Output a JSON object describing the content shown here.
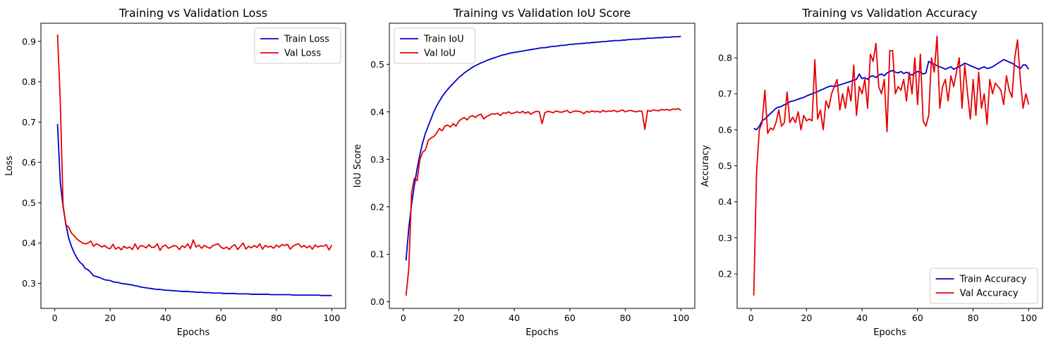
{
  "figure": {
    "background": "#ffffff"
  },
  "chart_data": [
    {
      "type": "line",
      "title": "Training vs Validation Loss",
      "xlabel": "Epochs",
      "ylabel": "Loss",
      "xlim": [
        -5,
        105
      ],
      "ylim": [
        0.238,
        0.945
      ],
      "xticks": [
        0,
        20,
        40,
        60,
        80,
        100
      ],
      "xtick_labels": [
        "0",
        "20",
        "40",
        "60",
        "80",
        "100"
      ],
      "yticks": [
        0.3,
        0.4,
        0.5,
        0.6,
        0.7,
        0.8,
        0.9
      ],
      "ytick_labels": [
        "0.3",
        "0.4",
        "0.5",
        "0.6",
        "0.7",
        "0.8",
        "0.9"
      ],
      "grid": false,
      "legend": {
        "position": "top-right"
      },
      "x": {
        "start": 1,
        "end": 100
      },
      "series": [
        {
          "name": "Train Loss",
          "color": "#0000cc",
          "values": [
            0.695,
            0.55,
            0.49,
            0.448,
            0.413,
            0.392,
            0.376,
            0.363,
            0.353,
            0.347,
            0.337,
            0.334,
            0.327,
            0.319,
            0.317,
            0.315,
            0.312,
            0.309,
            0.308,
            0.307,
            0.304,
            0.303,
            0.302,
            0.3,
            0.299,
            0.298,
            0.297,
            0.296,
            0.294,
            0.293,
            0.291,
            0.29,
            0.289,
            0.288,
            0.287,
            0.286,
            0.285,
            0.285,
            0.284,
            0.283,
            0.283,
            0.282,
            0.282,
            0.281,
            0.281,
            0.28,
            0.28,
            0.28,
            0.279,
            0.279,
            0.278,
            0.278,
            0.278,
            0.277,
            0.277,
            0.277,
            0.276,
            0.276,
            0.276,
            0.276,
            0.275,
            0.275,
            0.275,
            0.275,
            0.275,
            0.274,
            0.274,
            0.274,
            0.274,
            0.274,
            0.273,
            0.273,
            0.273,
            0.273,
            0.273,
            0.273,
            0.273,
            0.272,
            0.272,
            0.272,
            0.272,
            0.272,
            0.272,
            0.272,
            0.272,
            0.271,
            0.271,
            0.271,
            0.271,
            0.271,
            0.271,
            0.271,
            0.271,
            0.271,
            0.271,
            0.27,
            0.27,
            0.27,
            0.27,
            0.27
          ]
        },
        {
          "name": "Val Loss",
          "color": "#e60000",
          "values": [
            0.917,
            0.75,
            0.495,
            0.445,
            0.44,
            0.425,
            0.418,
            0.41,
            0.405,
            0.4,
            0.398,
            0.4,
            0.405,
            0.392,
            0.398,
            0.395,
            0.39,
            0.394,
            0.388,
            0.386,
            0.397,
            0.385,
            0.39,
            0.383,
            0.392,
            0.387,
            0.39,
            0.384,
            0.398,
            0.385,
            0.394,
            0.392,
            0.388,
            0.396,
            0.389,
            0.39,
            0.398,
            0.382,
            0.392,
            0.395,
            0.387,
            0.39,
            0.394,
            0.392,
            0.384,
            0.393,
            0.389,
            0.398,
            0.386,
            0.408,
            0.39,
            0.395,
            0.387,
            0.394,
            0.39,
            0.387,
            0.393,
            0.396,
            0.398,
            0.39,
            0.386,
            0.39,
            0.384,
            0.392,
            0.396,
            0.384,
            0.392,
            0.4,
            0.385,
            0.392,
            0.388,
            0.394,
            0.389,
            0.398,
            0.385,
            0.394,
            0.39,
            0.392,
            0.387,
            0.395,
            0.39,
            0.396,
            0.394,
            0.397,
            0.385,
            0.392,
            0.396,
            0.398,
            0.39,
            0.394,
            0.388,
            0.393,
            0.385,
            0.395,
            0.39,
            0.393,
            0.392,
            0.396,
            0.383,
            0.395
          ]
        }
      ]
    },
    {
      "type": "line",
      "title": "Training vs Validation IoU Score",
      "xlabel": "Epochs",
      "ylabel": "IoU Score",
      "xlim": [
        -5,
        105
      ],
      "ylim": [
        -0.0138,
        0.5865
      ],
      "xticks": [
        0,
        20,
        40,
        60,
        80,
        100
      ],
      "xtick_labels": [
        "0",
        "20",
        "40",
        "60",
        "80",
        "100"
      ],
      "yticks": [
        0.0,
        0.1,
        0.2,
        0.3,
        0.4,
        0.5
      ],
      "ytick_labels": [
        "0.0",
        "0.1",
        "0.2",
        "0.3",
        "0.4",
        "0.5"
      ],
      "grid": false,
      "legend": {
        "position": "top-left"
      },
      "x": {
        "start": 1,
        "end": 100
      },
      "series": [
        {
          "name": "Train IoU",
          "color": "#0000cc",
          "values": [
            0.087,
            0.155,
            0.205,
            0.245,
            0.28,
            0.31,
            0.335,
            0.355,
            0.37,
            0.385,
            0.4,
            0.412,
            0.422,
            0.432,
            0.44,
            0.447,
            0.454,
            0.46,
            0.466,
            0.472,
            0.477,
            0.482,
            0.486,
            0.49,
            0.494,
            0.497,
            0.5,
            0.503,
            0.505,
            0.508,
            0.51,
            0.512,
            0.514,
            0.516,
            0.518,
            0.52,
            0.521,
            0.523,
            0.524,
            0.525,
            0.526,
            0.527,
            0.528,
            0.529,
            0.53,
            0.531,
            0.532,
            0.533,
            0.534,
            0.535,
            0.535,
            0.536,
            0.537,
            0.538,
            0.538,
            0.539,
            0.54,
            0.54,
            0.541,
            0.542,
            0.542,
            0.543,
            0.543,
            0.544,
            0.544,
            0.545,
            0.545,
            0.546,
            0.546,
            0.547,
            0.547,
            0.548,
            0.548,
            0.549,
            0.549,
            0.55,
            0.55,
            0.55,
            0.551,
            0.551,
            0.552,
            0.552,
            0.553,
            0.553,
            0.553,
            0.554,
            0.554,
            0.555,
            0.555,
            0.555,
            0.556,
            0.556,
            0.556,
            0.557,
            0.557,
            0.557,
            0.558,
            0.558,
            0.558,
            0.559
          ]
        },
        {
          "name": "Val IoU",
          "color": "#e60000",
          "values": [
            0.013,
            0.07,
            0.23,
            0.26,
            0.255,
            0.3,
            0.315,
            0.32,
            0.34,
            0.345,
            0.348,
            0.355,
            0.365,
            0.36,
            0.37,
            0.372,
            0.368,
            0.375,
            0.37,
            0.38,
            0.385,
            0.388,
            0.383,
            0.39,
            0.392,
            0.388,
            0.393,
            0.395,
            0.385,
            0.39,
            0.393,
            0.396,
            0.395,
            0.397,
            0.392,
            0.398,
            0.397,
            0.4,
            0.396,
            0.398,
            0.4,
            0.398,
            0.401,
            0.397,
            0.4,
            0.395,
            0.399,
            0.401,
            0.4,
            0.375,
            0.398,
            0.401,
            0.4,
            0.398,
            0.402,
            0.4,
            0.399,
            0.401,
            0.403,
            0.398,
            0.4,
            0.402,
            0.401,
            0.4,
            0.396,
            0.401,
            0.399,
            0.402,
            0.4,
            0.401,
            0.399,
            0.403,
            0.4,
            0.402,
            0.401,
            0.403,
            0.4,
            0.402,
            0.404,
            0.4,
            0.402,
            0.403,
            0.401,
            0.4,
            0.402,
            0.401,
            0.363,
            0.403,
            0.401,
            0.404,
            0.403,
            0.402,
            0.405,
            0.404,
            0.405,
            0.403,
            0.406,
            0.405,
            0.407,
            0.403
          ]
        }
      ]
    },
    {
      "type": "line",
      "title": "Training vs Validation Accuracy",
      "xlabel": "Epochs",
      "ylabel": "Accuracy",
      "xlim": [
        -5,
        105
      ],
      "ylim": [
        0.104,
        0.896
      ],
      "xticks": [
        0,
        20,
        40,
        60,
        80,
        100
      ],
      "xtick_labels": [
        "0",
        "20",
        "40",
        "60",
        "80",
        "100"
      ],
      "yticks": [
        0.2,
        0.3,
        0.4,
        0.5,
        0.6,
        0.7,
        0.8
      ],
      "ytick_labels": [
        "0.2",
        "0.3",
        "0.4",
        "0.5",
        "0.6",
        "0.7",
        "0.8"
      ],
      "grid": false,
      "legend": {
        "position": "bottom-right"
      },
      "x": {
        "start": 1,
        "end": 100
      },
      "series": [
        {
          "name": "Train Accuracy",
          "color": "#0000cc",
          "values": [
            0.604,
            0.6,
            0.61,
            0.625,
            0.63,
            0.638,
            0.645,
            0.652,
            0.66,
            0.663,
            0.665,
            0.67,
            0.672,
            0.678,
            0.68,
            0.682,
            0.685,
            0.688,
            0.69,
            0.694,
            0.697,
            0.7,
            0.703,
            0.706,
            0.71,
            0.713,
            0.717,
            0.72,
            0.722,
            0.72,
            0.722,
            0.725,
            0.727,
            0.73,
            0.732,
            0.735,
            0.738,
            0.74,
            0.755,
            0.742,
            0.745,
            0.74,
            0.748,
            0.75,
            0.745,
            0.752,
            0.755,
            0.75,
            0.758,
            0.762,
            0.765,
            0.76,
            0.758,
            0.762,
            0.756,
            0.76,
            0.755,
            0.752,
            0.758,
            0.762,
            0.76,
            0.755,
            0.758,
            0.79,
            0.785,
            0.782,
            0.778,
            0.775,
            0.772,
            0.768,
            0.772,
            0.775,
            0.768,
            0.772,
            0.775,
            0.78,
            0.785,
            0.782,
            0.778,
            0.775,
            0.772,
            0.768,
            0.772,
            0.775,
            0.77,
            0.772,
            0.775,
            0.78,
            0.785,
            0.79,
            0.795,
            0.792,
            0.788,
            0.785,
            0.78,
            0.775,
            0.77,
            0.78,
            0.78,
            0.768
          ]
        },
        {
          "name": "Val Accuracy",
          "color": "#e60000",
          "values": [
            0.14,
            0.48,
            0.6,
            0.62,
            0.71,
            0.59,
            0.605,
            0.6,
            0.62,
            0.655,
            0.61,
            0.62,
            0.705,
            0.62,
            0.635,
            0.62,
            0.65,
            0.6,
            0.64,
            0.625,
            0.63,
            0.625,
            0.795,
            0.63,
            0.655,
            0.6,
            0.68,
            0.66,
            0.7,
            0.72,
            0.74,
            0.655,
            0.7,
            0.66,
            0.72,
            0.68,
            0.78,
            0.64,
            0.72,
            0.7,
            0.74,
            0.66,
            0.81,
            0.79,
            0.84,
            0.72,
            0.7,
            0.74,
            0.595,
            0.82,
            0.82,
            0.7,
            0.72,
            0.71,
            0.74,
            0.68,
            0.76,
            0.7,
            0.8,
            0.67,
            0.81,
            0.625,
            0.61,
            0.64,
            0.8,
            0.76,
            0.86,
            0.66,
            0.72,
            0.74,
            0.68,
            0.75,
            0.72,
            0.76,
            0.8,
            0.66,
            0.78,
            0.7,
            0.63,
            0.74,
            0.64,
            0.76,
            0.66,
            0.7,
            0.615,
            0.74,
            0.7,
            0.73,
            0.72,
            0.71,
            0.67,
            0.75,
            0.71,
            0.69,
            0.8,
            0.85,
            0.74,
            0.66,
            0.7,
            0.67
          ]
        }
      ]
    }
  ]
}
